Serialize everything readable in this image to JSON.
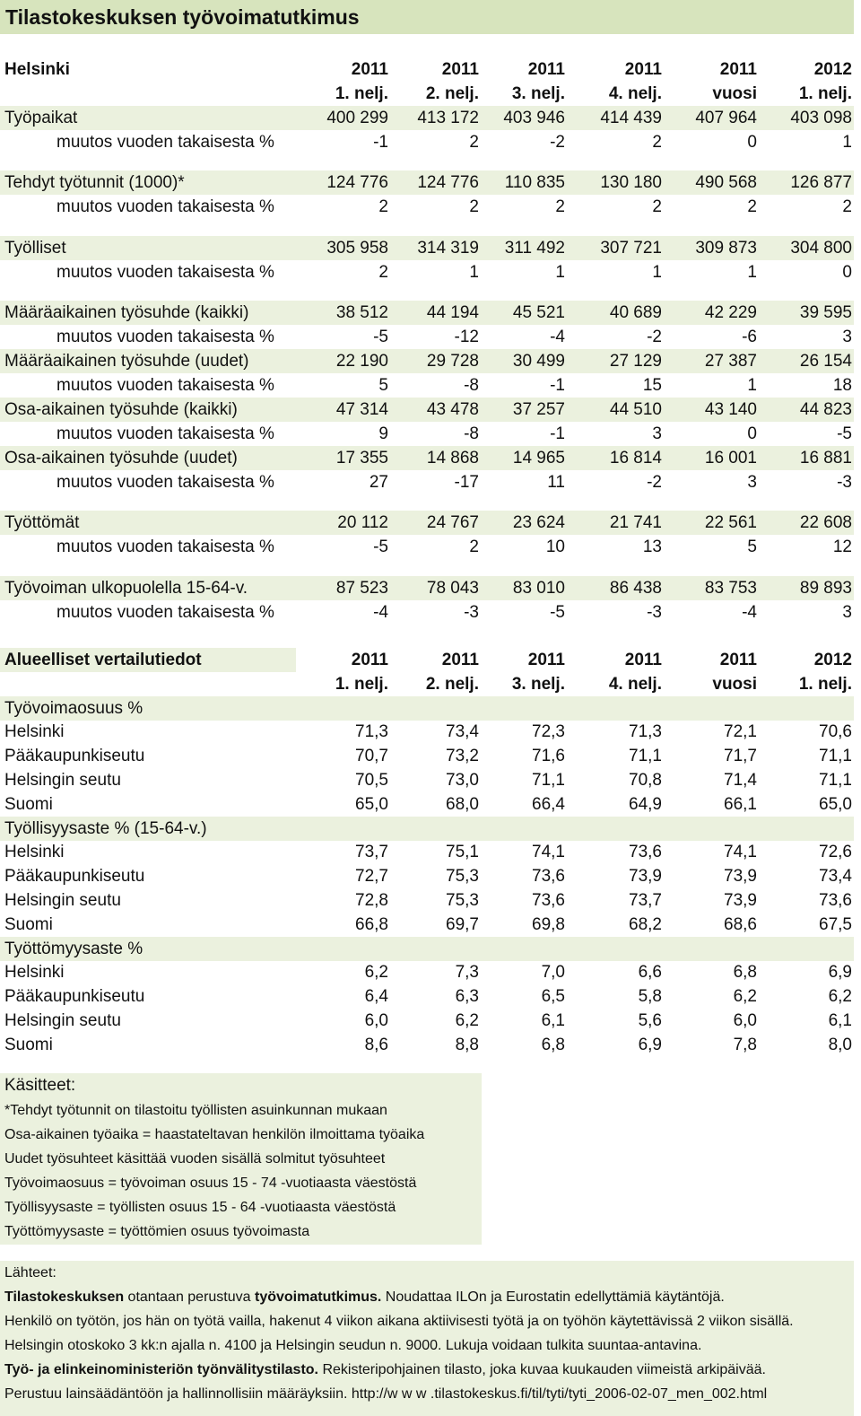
{
  "title": "Tilastokeskuksen työvoimatutkimus",
  "section1": {
    "label": "Helsinki",
    "years": [
      "2011",
      "2011",
      "2011",
      "2011",
      "2011",
      "2012"
    ],
    "periods": [
      "1. nelj.",
      "2. nelj.",
      "3. nelj.",
      "4. nelj.",
      "vuosi",
      "1. nelj."
    ],
    "rows": [
      {
        "label": "Työpaikat",
        "values": [
          "400 299",
          "413 172",
          "403 946",
          "414 439",
          "407 964",
          "403 098"
        ]
      },
      {
        "label": "muutos vuoden takaisesta %",
        "values": [
          "-1",
          "2",
          "-2",
          "2",
          "0",
          "1"
        ]
      },
      {
        "label": "Tehdyt työtunnit (1000)*",
        "values": [
          "124 776",
          "124 776",
          "110 835",
          "130 180",
          "490 568",
          "126 877"
        ]
      },
      {
        "label": "muutos vuoden takaisesta %",
        "values": [
          "2",
          "2",
          "2",
          "2",
          "2",
          "2"
        ]
      },
      {
        "label": "Työlliset",
        "values": [
          "305 958",
          "314 319",
          "311 492",
          "307 721",
          "309 873",
          "304 800"
        ]
      },
      {
        "label": "muutos vuoden takaisesta %",
        "values": [
          "2",
          "1",
          "1",
          "1",
          "1",
          "0"
        ]
      },
      {
        "label": "Määräaikainen työsuhde (kaikki)",
        "values": [
          "38 512",
          "44 194",
          "45 521",
          "40 689",
          "42 229",
          "39 595"
        ]
      },
      {
        "label": "muutos vuoden takaisesta %",
        "values": [
          "-5",
          "-12",
          "-4",
          "-2",
          "-6",
          "3"
        ]
      },
      {
        "label": "Määräaikainen työsuhde (uudet)",
        "values": [
          "22 190",
          "29 728",
          "30 499",
          "27 129",
          "27 387",
          "26 154"
        ]
      },
      {
        "label": "muutos vuoden takaisesta %",
        "values": [
          "5",
          "-8",
          "-1",
          "15",
          "1",
          "18"
        ]
      },
      {
        "label": "Osa-aikainen työsuhde (kaikki)",
        "values": [
          "47 314",
          "43 478",
          "37 257",
          "44 510",
          "43 140",
          "44 823"
        ]
      },
      {
        "label": "muutos vuoden takaisesta %",
        "values": [
          "9",
          "-8",
          "-1",
          "3",
          "0",
          "-5"
        ]
      },
      {
        "label": "Osa-aikainen työsuhde (uudet)",
        "values": [
          "17 355",
          "14 868",
          "14 965",
          "16 814",
          "16 001",
          "16 881"
        ]
      },
      {
        "label": "muutos vuoden takaisesta %",
        "values": [
          "27",
          "-17",
          "11",
          "-2",
          "3",
          "-3"
        ]
      },
      {
        "label": "Työttömät",
        "values": [
          "20 112",
          "24 767",
          "23 624",
          "21 741",
          "22 561",
          "22 608"
        ]
      },
      {
        "label": "muutos vuoden takaisesta %",
        "values": [
          "-5",
          "2",
          "10",
          "13",
          "5",
          "12"
        ]
      },
      {
        "label": "Työvoiman ulkopuolella 15-64-v.",
        "values": [
          "87 523",
          "78 043",
          "83 010",
          "86 438",
          "83 753",
          "89 893"
        ]
      },
      {
        "label": "muutos vuoden takaisesta %",
        "values": [
          "-4",
          "-3",
          "-5",
          "-3",
          "-4",
          "3"
        ]
      }
    ]
  },
  "section2": {
    "label": "Alueelliset vertailutiedot",
    "years": [
      "2011",
      "2011",
      "2011",
      "2011",
      "2011",
      "2012"
    ],
    "periods": [
      "1. nelj.",
      "2. nelj.",
      "3. nelj.",
      "4. nelj.",
      "vuosi",
      "1. nelj."
    ],
    "groups": [
      {
        "heading": "Työvoimaosuus %",
        "rows": [
          {
            "label": "Helsinki",
            "values": [
              "71,3",
              "73,4",
              "72,3",
              "71,3",
              "72,1",
              "70,6"
            ]
          },
          {
            "label": "Pääkaupunkiseutu",
            "values": [
              "70,7",
              "73,2",
              "71,6",
              "71,1",
              "71,7",
              "71,1"
            ]
          },
          {
            "label": "Helsingin seutu",
            "values": [
              "70,5",
              "73,0",
              "71,1",
              "70,8",
              "71,4",
              "71,1"
            ]
          },
          {
            "label": "Suomi",
            "values": [
              "65,0",
              "68,0",
              "66,4",
              "64,9",
              "66,1",
              "65,0"
            ]
          }
        ]
      },
      {
        "heading": "Työllisyysaste % (15-64-v.)",
        "rows": [
          {
            "label": "Helsinki",
            "values": [
              "73,7",
              "75,1",
              "74,1",
              "73,6",
              "74,1",
              "72,6"
            ]
          },
          {
            "label": "Pääkaupunkiseutu",
            "values": [
              "72,7",
              "75,3",
              "73,6",
              "73,9",
              "73,9",
              "73,4"
            ]
          },
          {
            "label": "Helsingin seutu",
            "values": [
              "72,8",
              "75,3",
              "73,6",
              "73,7",
              "73,9",
              "73,6"
            ]
          },
          {
            "label": "Suomi",
            "values": [
              "66,8",
              "69,7",
              "69,8",
              "68,2",
              "68,6",
              "67,5"
            ]
          }
        ]
      },
      {
        "heading": "Työttömyysaste %",
        "rows": [
          {
            "label": "Helsinki",
            "values": [
              "6,2",
              "7,3",
              "7,0",
              "6,6",
              "6,8",
              "6,9"
            ]
          },
          {
            "label": "Pääkaupunkiseutu",
            "values": [
              "6,4",
              "6,3",
              "6,5",
              "5,8",
              "6,2",
              "6,2"
            ]
          },
          {
            "label": "Helsingin seutu",
            "values": [
              "6,0",
              "6,2",
              "6,1",
              "5,6",
              "6,0",
              "6,1"
            ]
          },
          {
            "label": "Suomi",
            "values": [
              "8,6",
              "8,8",
              "6,8",
              "6,9",
              "7,8",
              "8,0"
            ]
          }
        ]
      }
    ]
  },
  "definitions": {
    "title": "Käsitteet:",
    "lines": [
      "*Tehdyt työtunnit on tilastoitu työllisten asuinkunnan mukaan",
      "Osa-aikainen työaika = haastateltavan henkilön ilmoittama työaika",
      "Uudet työsuhteet käsittää vuoden sisällä solmitut työsuhteet",
      "Työvoimaosuus = työvoiman osuus 15 - 74 -vuotiaasta väestöstä",
      "Työllisyysaste = työllisten osuus 15 - 64 -vuotiaasta väestöstä",
      "Työttömyysaste = työttömien osuus työvoimasta"
    ]
  },
  "sources": {
    "title": "Lähteet:",
    "line1": {
      "b1": "Tilastokeskuksen",
      "t1": " otantaan perustuva ",
      "b2": "työvoimatutkimus.",
      "t2": " Noudattaa ILOn ja Eurostatin edellyttämiä käytäntöjä."
    },
    "line2": "Henkilö on työtön, jos hän on työtä vailla, hakenut 4 viikon aikana aktiivisesti työtä ja on työhön käytettävissä 2 viikon sisällä.",
    "line3": "Helsingin otoskoko 3 kk:n ajalla n. 4100 ja Helsingin seudun n. 9000. Lukuja voidaan tulkita suuntaa-antavina.",
    "line4": {
      "b1": "Työ- ja elinkeinoministeriön työnvälitystilasto.",
      "t1": " Rekisteripohjainen tilasto, joka kuvaa kuukauden viimeistä arkipäivää."
    },
    "line5": "Perustuu lainsäädäntöön ja hallinnollisiin määräyksiin. http://w w w .tilastokeskus.fi/til/tyti/tyti_2006-02-07_men_002.html"
  }
}
